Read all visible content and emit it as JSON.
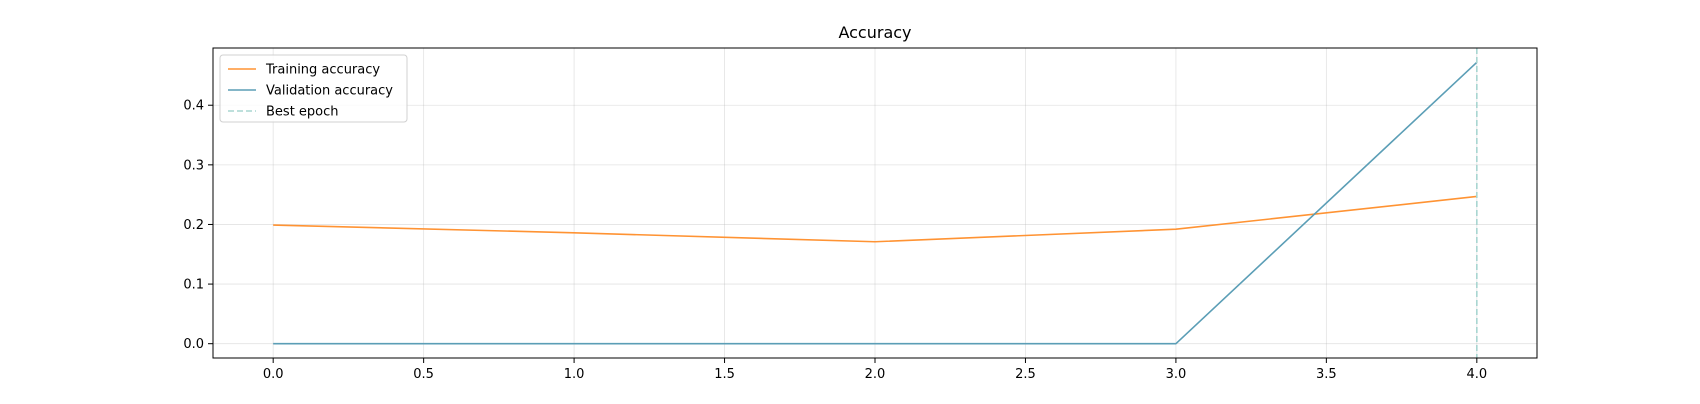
{
  "chart_data": {
    "type": "line",
    "title": "Accuracy",
    "xlabel": "",
    "ylabel": "",
    "x": [
      0,
      1,
      2,
      3,
      4
    ],
    "series": [
      {
        "name": "Training accuracy",
        "color": "#ff9333",
        "values": [
          0.199,
          0.186,
          0.171,
          0.192,
          0.247
        ]
      },
      {
        "name": "Validation accuracy",
        "color": "#5b9eb6",
        "values": [
          0.0,
          0.0,
          0.0,
          0.0,
          0.472
        ]
      }
    ],
    "best_epoch": {
      "name": "Best epoch",
      "x": 4,
      "color": "#a8d5d1",
      "style": "dashed"
    },
    "xlim": [
      -0.2,
      4.2
    ],
    "ylim": [
      -0.024,
      0.496
    ],
    "xticks": [
      0.0,
      0.5,
      1.0,
      1.5,
      2.0,
      2.5,
      3.0,
      3.5,
      4.0
    ],
    "xtick_labels": [
      "0.0",
      "0.5",
      "1.0",
      "1.5",
      "2.0",
      "2.5",
      "3.0",
      "3.5",
      "4.0"
    ],
    "yticks": [
      0.0,
      0.1,
      0.2,
      0.3,
      0.4
    ],
    "ytick_labels": [
      "0.0",
      "0.1",
      "0.2",
      "0.3",
      "0.4"
    ],
    "grid": true,
    "legend_position": "upper-left"
  }
}
